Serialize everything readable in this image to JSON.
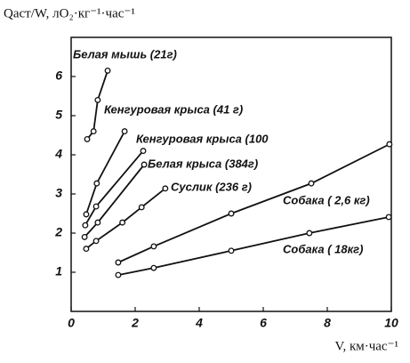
{
  "chart_data": {
    "type": "line",
    "title": "Qаст/W, лO₂·кг⁻¹·час⁻¹",
    "x_label": "V, км·час⁻¹",
    "xlim": [
      0,
      10
    ],
    "ylim": [
      0,
      7
    ],
    "xticks": [
      0,
      2,
      4,
      6,
      8,
      10
    ],
    "yticks": [
      1,
      2,
      3,
      4,
      5,
      6
    ],
    "grid": false,
    "series": [
      {
        "name": "Белая мышь (21г)",
        "color": "#111111",
        "x": [
          0.5,
          0.7,
          0.83,
          1.14
        ],
        "values": [
          4.4,
          4.6,
          5.4,
          6.15
        ]
      },
      {
        "name": "Кенгуровая крыса (41 г)",
        "color": "#111111",
        "x": [
          0.47,
          0.8,
          1.67
        ],
        "values": [
          2.48,
          3.27,
          4.6
        ]
      },
      {
        "name": "Кенгуровая крыса (100",
        "color": "#111111",
        "x": [
          0.44,
          0.78,
          2.25
        ],
        "values": [
          2.2,
          2.68,
          4.1
        ]
      },
      {
        "name": "Белая крыса (384г)",
        "color": "#111111",
        "x": [
          0.42,
          0.83,
          2.28
        ],
        "values": [
          1.9,
          2.27,
          3.75
        ]
      },
      {
        "name": "Суслик (236 г)",
        "color": "#111111",
        "x": [
          0.47,
          0.78,
          1.6,
          2.2,
          2.94
        ],
        "values": [
          1.6,
          1.8,
          2.27,
          2.66,
          3.14
        ]
      },
      {
        "name": "Собака ( 2,6 кг)",
        "color": "#111111",
        "x": [
          1.47,
          2.58,
          5.0,
          7.5,
          9.94
        ],
        "values": [
          1.25,
          1.66,
          2.5,
          3.27,
          4.27
        ]
      },
      {
        "name": "Собака ( 18кг)",
        "color": "#111111",
        "x": [
          1.47,
          2.58,
          5.0,
          7.44,
          9.92
        ],
        "values": [
          0.93,
          1.11,
          1.55,
          2.0,
          2.41
        ]
      }
    ]
  }
}
